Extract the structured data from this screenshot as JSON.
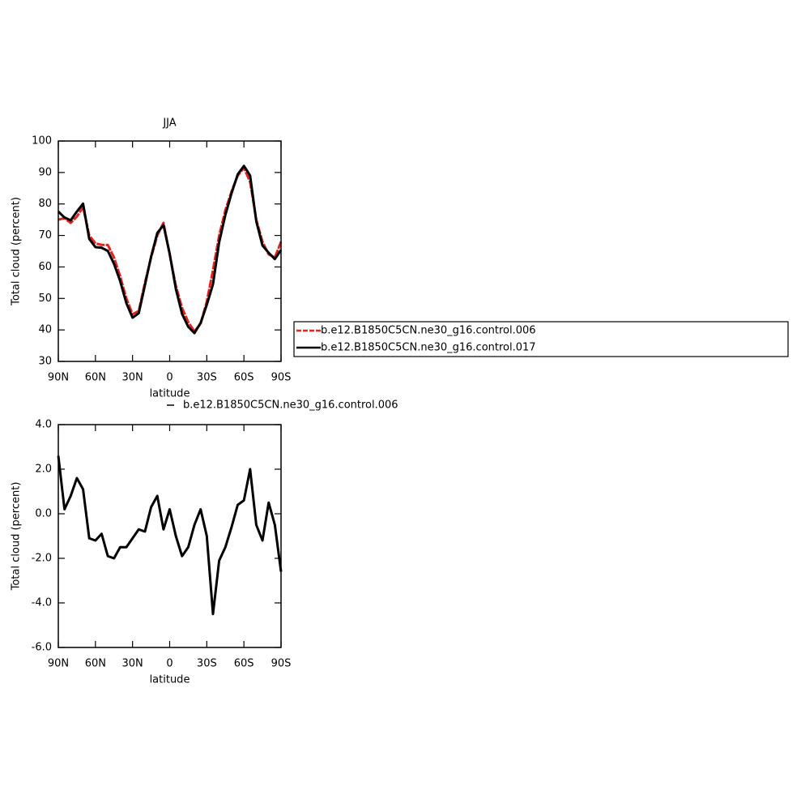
{
  "chart_data": [
    {
      "type": "line",
      "title": "JJA",
      "xlabel": "latitude",
      "ylabel": "Total cloud (percent)",
      "x": [
        90,
        85,
        80,
        75,
        70,
        65,
        60,
        55,
        50,
        45,
        40,
        35,
        30,
        25,
        20,
        15,
        10,
        5,
        0,
        -5,
        -10,
        -15,
        -20,
        -25,
        -30,
        -35,
        -40,
        -45,
        -50,
        -55,
        -60,
        -65,
        -70,
        -75,
        -80,
        -85,
        -90
      ],
      "series": [
        {
          "name": "b.e12.B1850C5CN.ne30_g16.control.006",
          "color": "#e8211d",
          "dashed": true,
          "values": [
            75,
            75.5,
            74,
            76,
            79,
            70,
            67.5,
            67,
            67,
            63,
            57,
            50,
            45,
            46,
            55,
            63,
            70,
            74,
            64,
            54,
            47,
            42.5,
            39.5,
            42,
            49,
            59,
            70,
            78,
            84,
            89,
            91.5,
            87,
            75,
            68,
            64,
            63,
            68
          ]
        },
        {
          "name": "b.e12.B1850C5CN.ne30_g16.control.017",
          "color": "#000000",
          "dashed": false,
          "values": [
            77.6,
            75.7,
            74.8,
            77.6,
            80.1,
            68.9,
            66.3,
            66.1,
            65.1,
            61,
            55.5,
            48.5,
            43.9,
            45.3,
            54.2,
            63.3,
            70.8,
            73.3,
            64.2,
            53,
            45.1,
            41,
            39,
            42.2,
            48,
            54.5,
            67.9,
            76.5,
            83.4,
            89.4,
            92.1,
            89,
            74.5,
            66.8,
            64.5,
            62.5,
            65.4
          ]
        }
      ],
      "xlim": [
        90,
        -90
      ],
      "ylim": [
        30,
        100
      ],
      "xticks": [
        {
          "value": 90,
          "label": "90N"
        },
        {
          "value": 60,
          "label": "60N"
        },
        {
          "value": 30,
          "label": "30N"
        },
        0,
        {
          "value": -30,
          "label": "30S"
        },
        {
          "value": -60,
          "label": "60S"
        },
        {
          "value": -90,
          "label": "90S"
        }
      ],
      "yticks": [
        30,
        40,
        50,
        60,
        70,
        80,
        90,
        100
      ],
      "legend": "right"
    },
    {
      "type": "line",
      "xlabel": "latitude",
      "ylabel": "Total cloud (percent)",
      "x": [
        90,
        85,
        80,
        75,
        70,
        65,
        60,
        55,
        50,
        45,
        40,
        35,
        30,
        25,
        20,
        15,
        10,
        5,
        0,
        -5,
        -10,
        -15,
        -20,
        -25,
        -30,
        -35,
        -40,
        -45,
        -50,
        -55,
        -60,
        -65,
        -70,
        -75,
        -80,
        -85,
        -90
      ],
      "series": [
        {
          "name": "b.e12.B1850C5CN.ne30_g16.control.006",
          "color": "#000000",
          "dashed": false,
          "values": [
            2.6,
            0.2,
            0.8,
            1.6,
            1.1,
            -1.1,
            -1.2,
            -0.9,
            -1.9,
            -2.0,
            -1.5,
            -1.5,
            -1.1,
            -0.7,
            -0.8,
            0.3,
            0.8,
            -0.7,
            0.2,
            -1.0,
            -1.9,
            -1.5,
            -0.5,
            0.2,
            -1.0,
            -4.5,
            -2.1,
            -1.5,
            -0.6,
            0.4,
            0.6,
            2.0,
            -0.5,
            -1.2,
            0.5,
            -0.5,
            -2.6
          ]
        }
      ],
      "xlim": [
        90,
        -90
      ],
      "ylim": [
        -6,
        4
      ],
      "xticks": [
        {
          "value": 90,
          "label": "90N"
        },
        {
          "value": 60,
          "label": "60N"
        },
        {
          "value": 30,
          "label": "30N"
        },
        0,
        {
          "value": -30,
          "label": "30S"
        },
        {
          "value": -60,
          "label": "60S"
        },
        {
          "value": -90,
          "label": "90S"
        }
      ],
      "yticks": [
        {
          "value": -6,
          "label": "-6.0"
        },
        {
          "value": -4,
          "label": "-4.0"
        },
        {
          "value": -2,
          "label": "-2.0"
        },
        {
          "value": 0,
          "label": "0.0"
        },
        {
          "value": 2,
          "label": "2.0"
        },
        {
          "value": 4,
          "label": "4.0"
        }
      ],
      "legend": "top"
    }
  ]
}
